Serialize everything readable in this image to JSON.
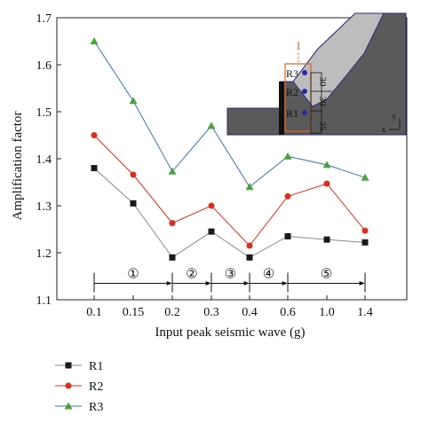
{
  "chart_data": {
    "type": "line",
    "categories": [
      "0.1",
      "0.15",
      "0.2",
      "0.3",
      "0.4",
      "0.6",
      "1.0",
      "1.4"
    ],
    "xlabel": "Input peak seismic wave (g)",
    "ylabel": "Amplification factor",
    "ylim": [
      1.1,
      1.7
    ],
    "yticks": [
      "1.1",
      "1.2",
      "1.3",
      "1.4",
      "1.5",
      "1.6",
      "1.7"
    ],
    "grid": false,
    "legend_position": "bottom-left",
    "series": [
      {
        "name": "R1",
        "color": "#1a1a1a",
        "marker": "square",
        "line_color": "#8a8a8a",
        "values": [
          1.38,
          1.305,
          1.19,
          1.245,
          1.19,
          1.235,
          1.228,
          1.222
        ]
      },
      {
        "name": "R2",
        "color": "#d8301c",
        "marker": "circle",
        "line_color": "#d8301c",
        "values": [
          1.45,
          1.366,
          1.263,
          1.3,
          1.215,
          1.32,
          1.347,
          1.247
        ]
      },
      {
        "name": "R3",
        "color": "#4aa33a",
        "marker": "triangle",
        "line_color": "#3f72b8",
        "values": [
          1.65,
          1.523,
          1.373,
          1.47,
          1.34,
          1.405,
          1.387,
          1.36
        ]
      }
    ],
    "stages": [
      {
        "label": "①",
        "from": 0,
        "to": 2
      },
      {
        "label": "②",
        "from": 2,
        "to": 3
      },
      {
        "label": "③",
        "from": 3,
        "to": 4
      },
      {
        "label": "④",
        "from": 4,
        "to": 5
      },
      {
        "label": "⑤",
        "from": 5,
        "to": 7
      }
    ],
    "stage_y": 1.135,
    "inset": {
      "section_label": "I",
      "monitor_labels": [
        "R3",
        "R2",
        "R1"
      ],
      "dimension_labels": [
        "30",
        "30",
        "35"
      ],
      "axis_labels": [
        "y",
        "x"
      ],
      "colors": {
        "slope": "#5a5a5a",
        "surface": "#bdbdbd",
        "marker": "#2a2aa8",
        "frame": "#e06020"
      }
    }
  }
}
